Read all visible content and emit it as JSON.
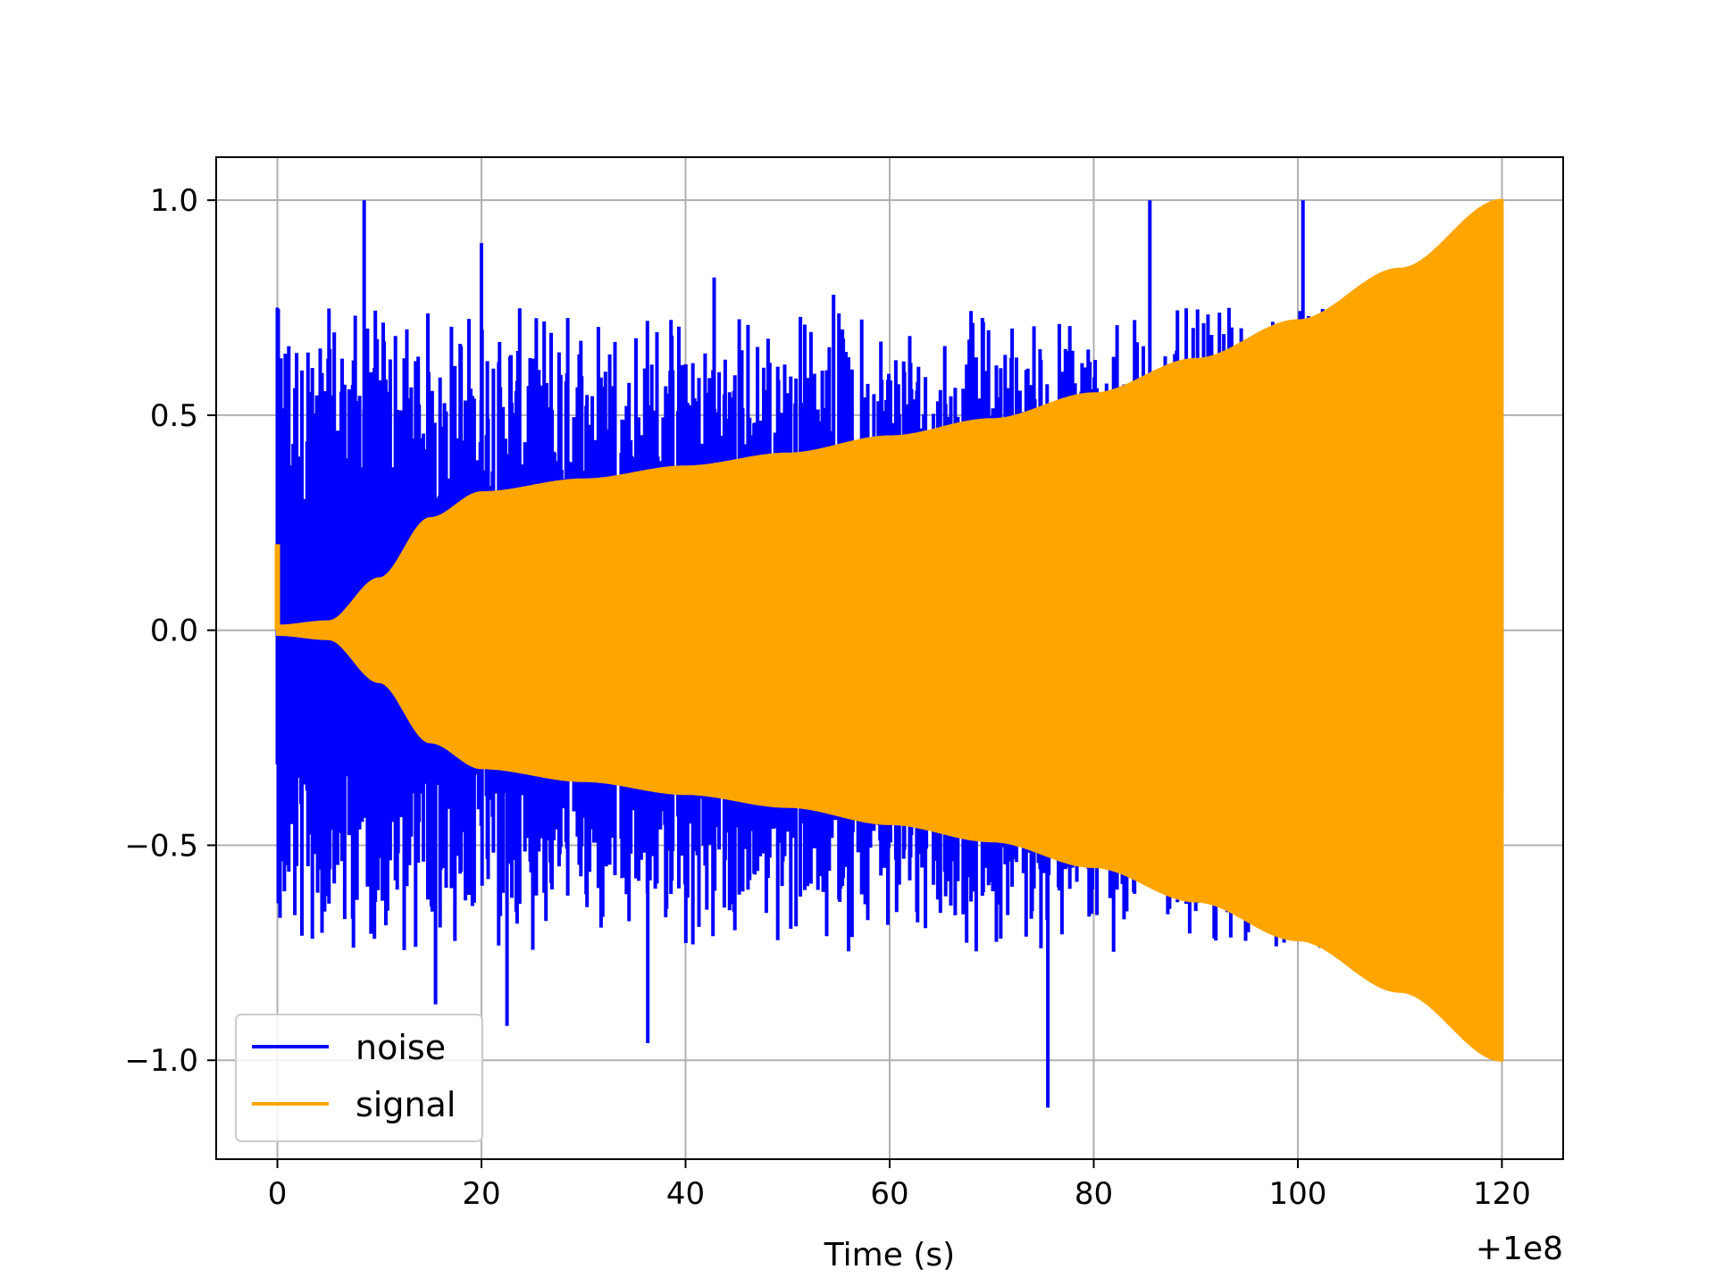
{
  "chart_data": {
    "type": "line",
    "title": "",
    "xlabel": "Time (s)",
    "ylabel": "",
    "x_offset_label": "+1e8",
    "xlim": [
      -6,
      126
    ],
    "ylim": [
      -1.23,
      1.1
    ],
    "x_ticks": [
      0,
      20,
      40,
      60,
      80,
      100,
      120
    ],
    "x_tick_labels": [
      "0",
      "20",
      "40",
      "60",
      "80",
      "100",
      "120"
    ],
    "y_ticks": [
      1.0,
      0.5,
      0.0,
      -0.5,
      -1.0
    ],
    "y_tick_labels": [
      "1.0",
      "0.5",
      "0.0",
      "−0.5",
      "−1.0"
    ],
    "grid": true,
    "legend_position": "lower left",
    "series": [
      {
        "name": "noise",
        "color": "#0000ff",
        "description_envelope": "random spikes between roughly -1.1 and 1.0 across 0-120 s",
        "x": [
          0,
          8.5,
          15.5,
          20,
          22.5,
          36.3,
          42.8,
          54.5,
          75.5,
          85.5,
          100.5
        ],
        "peaks": [
          0.75,
          1.0,
          -0.87,
          0.9,
          -0.92,
          -0.96,
          0.82,
          0.78,
          -1.11,
          1.0,
          1.0
        ]
      },
      {
        "name": "signal",
        "color": "#ffa500",
        "description_envelope": "oscillation with amplitude growing from ~0 to 1.0",
        "x": [
          0,
          5,
          10,
          15,
          20,
          30,
          40,
          50,
          60,
          70,
          80,
          90,
          100,
          110,
          120
        ],
        "amplitude": [
          0.01,
          0.02,
          0.12,
          0.26,
          0.32,
          0.35,
          0.38,
          0.41,
          0.45,
          0.49,
          0.55,
          0.63,
          0.72,
          0.84,
          1.0
        ]
      }
    ]
  }
}
